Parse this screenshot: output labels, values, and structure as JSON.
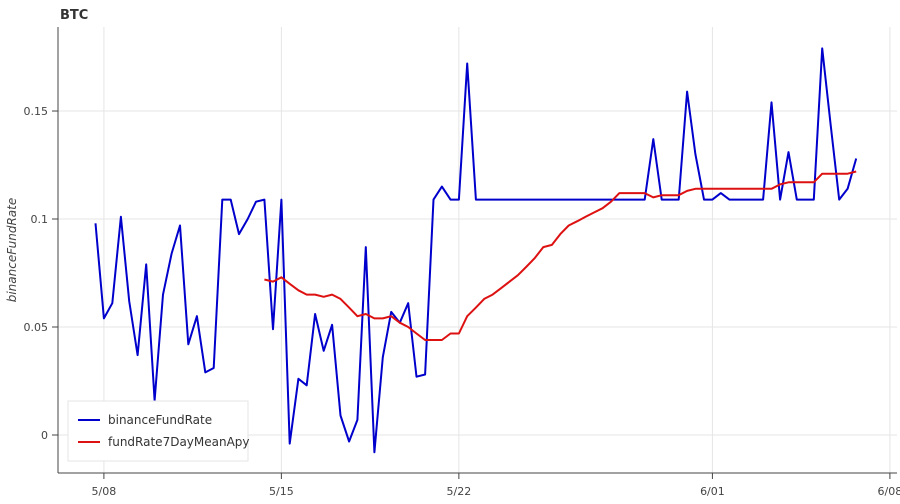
{
  "chart_data": {
    "type": "line",
    "title": "BTC",
    "y_label": "binanceFundRate",
    "x": [
      7.67,
      8,
      8.33,
      8.67,
      9,
      9.33,
      9.67,
      10,
      10.33,
      10.67,
      11,
      11.33,
      11.67,
      12,
      12.33,
      12.67,
      13,
      13.33,
      13.67,
      14,
      14.33,
      14.67,
      15,
      15.33,
      15.67,
      16,
      16.33,
      16.67,
      17,
      17.33,
      17.67,
      18,
      18.33,
      18.67,
      19,
      19.33,
      19.67,
      20,
      20.33,
      20.67,
      21,
      21.33,
      21.67,
      22,
      22.33,
      22.67,
      23,
      23.33,
      23.67,
      24,
      24.33,
      24.67,
      25,
      25.33,
      25.67,
      26,
      26.33,
      26.67,
      27,
      27.33,
      27.67,
      28,
      28.33,
      28.67,
      29,
      29.33,
      29.67,
      30,
      30.33,
      30.67,
      31,
      31.33,
      31.67,
      32,
      32.33,
      32.67,
      33,
      33.33,
      33.67,
      34,
      34.33,
      34.67,
      35,
      35.33,
      35.67,
      36,
      36.33,
      36.67,
      37,
      37.33,
      37.67
    ],
    "series": [
      {
        "name": "binanceFundRate",
        "color": "#0000cc",
        "values": [
          0.098,
          0.054,
          0.061,
          0.101,
          0.062,
          0.037,
          0.079,
          0.016,
          0.065,
          0.084,
          0.097,
          0.042,
          0.055,
          0.029,
          0.031,
          0.109,
          0.109,
          0.093,
          0.1,
          0.108,
          0.109,
          0.049,
          0.109,
          -0.004,
          0.026,
          0.023,
          0.056,
          0.039,
          0.051,
          0.009,
          -0.003,
          0.007,
          0.087,
          -0.008,
          0.036,
          0.057,
          0.052,
          0.061,
          0.027,
          0.028,
          0.109,
          0.115,
          0.109,
          0.109,
          0.172,
          0.109,
          0.109,
          0.109,
          0.109,
          0.109,
          0.109,
          0.109,
          0.109,
          0.109,
          0.109,
          0.109,
          0.109,
          0.109,
          0.109,
          0.109,
          0.109,
          0.109,
          0.109,
          0.109,
          0.109,
          0.109,
          0.137,
          0.109,
          0.109,
          0.109,
          0.159,
          0.13,
          0.109,
          0.109,
          0.112,
          0.109,
          0.109,
          0.109,
          0.109,
          0.109,
          0.154,
          0.109,
          0.131,
          0.109,
          0.109,
          0.109,
          0.179,
          0.143,
          0.109,
          0.114,
          0.128
        ]
      },
      {
        "name": "fundRate7DayMeanApy",
        "color": "#dd1111",
        "values": [
          null,
          null,
          null,
          null,
          null,
          null,
          null,
          null,
          null,
          null,
          null,
          null,
          null,
          null,
          null,
          null,
          null,
          null,
          null,
          null,
          0.072,
          0.071,
          0.073,
          0.07,
          0.067,
          0.065,
          0.065,
          0.064,
          0.065,
          0.063,
          0.059,
          0.055,
          0.056,
          0.054,
          0.054,
          0.055,
          0.052,
          0.05,
          0.047,
          0.044,
          0.044,
          0.044,
          0.047,
          0.047,
          0.055,
          0.059,
          0.063,
          0.065,
          0.068,
          0.071,
          0.074,
          0.078,
          0.082,
          0.087,
          0.088,
          0.093,
          0.097,
          0.099,
          0.101,
          0.103,
          0.105,
          0.108,
          0.112,
          0.112,
          0.112,
          0.112,
          0.11,
          0.111,
          0.111,
          0.111,
          0.113,
          0.114,
          0.114,
          0.114,
          0.114,
          0.114,
          0.114,
          0.114,
          0.114,
          0.114,
          0.114,
          0.116,
          0.117,
          0.117,
          0.117,
          0.117,
          0.121,
          0.121,
          0.121,
          0.121,
          0.122
        ]
      }
    ],
    "xlim": [
      6.19,
      39.28
    ],
    "xticks": [
      {
        "value": 8,
        "label": "5/08"
      },
      {
        "value": 15,
        "label": "5/15"
      },
      {
        "value": 22,
        "label": "5/22"
      },
      {
        "value": 32,
        "label": "6/01"
      },
      {
        "value": 39,
        "label": "6/08"
      }
    ],
    "ylim": [
      -0.0176,
      0.1889
    ],
    "yticks": [
      0,
      0.05,
      0.1,
      0.15
    ],
    "grid": true,
    "legend": "bottom-left"
  }
}
